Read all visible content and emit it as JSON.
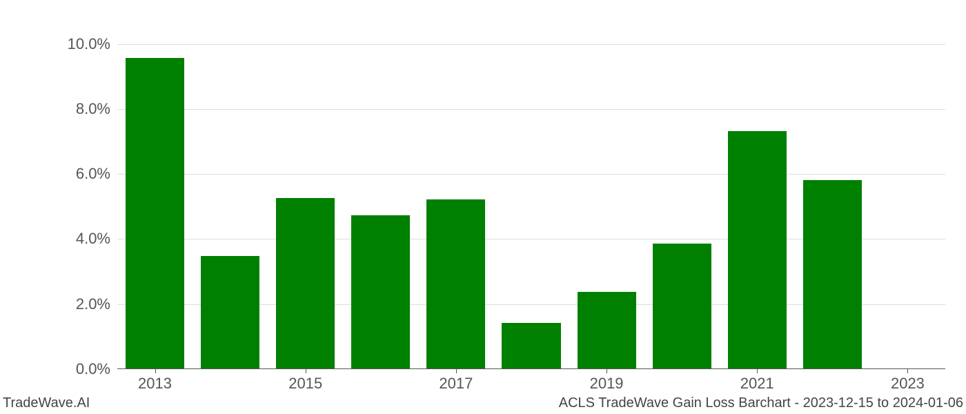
{
  "chart": {
    "type": "bar",
    "categories": [
      2013,
      2014,
      2015,
      2016,
      2017,
      2018,
      2019,
      2020,
      2021,
      2022,
      2023
    ],
    "values": [
      9.55,
      3.45,
      5.25,
      4.7,
      5.2,
      1.4,
      2.35,
      3.85,
      7.3,
      5.8,
      0.0
    ],
    "bar_colors": [
      "#008000",
      "#008000",
      "#008000",
      "#008000",
      "#008000",
      "#008000",
      "#008000",
      "#008000",
      "#008000",
      "#008000",
      "#008000"
    ],
    "x_ticks": [
      2013,
      2015,
      2017,
      2019,
      2021,
      2023
    ],
    "y_ticks": [
      0.0,
      2.0,
      4.0,
      6.0,
      8.0,
      10.0
    ],
    "y_tick_labels": [
      "0.0%",
      "2.0%",
      "4.0%",
      "6.0%",
      "8.0%",
      "10.0%"
    ],
    "ylim": [
      0,
      10.5
    ],
    "background_color": "#ffffff",
    "grid_color": "#dddddd",
    "axis_color": "#555555",
    "tick_fontsize": 22,
    "tick_color": "#555555",
    "bar_width_ratio": 0.78,
    "footer_fontsize": 20,
    "footer_color": "#444444"
  },
  "footer": {
    "left": "TradeWave.AI",
    "right": "ACLS TradeWave Gain Loss Barchart - 2023-12-15 to 2024-01-06"
  }
}
